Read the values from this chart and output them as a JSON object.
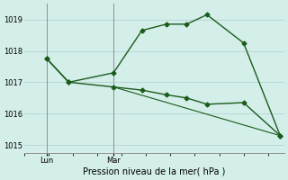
{
  "xlabel": "Pression niveau de la mer( hPa )",
  "background_color": "#d4eeea",
  "grid_color": "#b8d8d4",
  "line_color": "#1a5c1a",
  "ylim": [
    1014.75,
    1019.5
  ],
  "yticks": [
    1015,
    1016,
    1017,
    1018,
    1019
  ],
  "xlim": [
    0,
    320
  ],
  "lun_x": 28,
  "mar_x": 110,
  "line1_x": [
    28,
    55,
    110,
    145,
    175,
    200,
    225,
    270,
    315
  ],
  "line1_y": [
    1017.75,
    1017.0,
    1017.3,
    1018.65,
    1018.85,
    1018.85,
    1019.15,
    1018.25,
    1015.3
  ],
  "line2_x": [
    28,
    55,
    110,
    145,
    175,
    200,
    225,
    270,
    315
  ],
  "line2_y": [
    1017.75,
    1017.0,
    1016.85,
    1016.75,
    1016.6,
    1016.5,
    1016.3,
    1016.35,
    1015.3
  ],
  "line3_x": [
    110,
    315
  ],
  "line3_y": [
    1016.85,
    1015.3
  ],
  "markersize": 2.5,
  "linewidth": 1.0,
  "figsize": [
    3.2,
    2.0
  ],
  "dpi": 100
}
